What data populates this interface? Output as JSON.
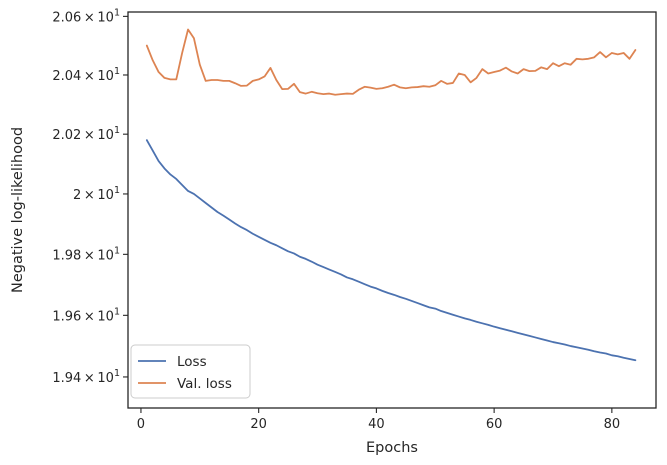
{
  "chart_data": {
    "type": "line",
    "xlabel": "Epochs",
    "ylabel": "Negative log-likelihood",
    "xlim": [
      -2.2,
      87.5
    ],
    "ylim": [
      19.3,
      20.615
    ],
    "yscale": "log",
    "grid": false,
    "legend_position": "lower-left",
    "x_ticks": [
      {
        "value": 0,
        "label": "0"
      },
      {
        "value": 20,
        "label": "20"
      },
      {
        "value": 40,
        "label": "40"
      },
      {
        "value": 60,
        "label": "60"
      },
      {
        "value": 80,
        "label": "80"
      }
    ],
    "y_ticks": [
      {
        "value": 19.4,
        "base": "1.94",
        "exp": "1"
      },
      {
        "value": 19.6,
        "base": "1.96",
        "exp": "1"
      },
      {
        "value": 19.8,
        "base": "1.98",
        "exp": "1"
      },
      {
        "value": 20.0,
        "base": "2",
        "exp": "1"
      },
      {
        "value": 20.2,
        "base": "2.02",
        "exp": "1"
      },
      {
        "value": 20.4,
        "base": "2.04",
        "exp": "1"
      },
      {
        "value": 20.6,
        "base": "2.06",
        "exp": "1"
      }
    ],
    "tick_times_sign": "×",
    "tick_base_ten": "10",
    "x": [
      1,
      2,
      3,
      4,
      5,
      6,
      7,
      8,
      9,
      10,
      11,
      12,
      13,
      14,
      15,
      16,
      17,
      18,
      19,
      20,
      21,
      22,
      23,
      24,
      25,
      26,
      27,
      28,
      29,
      30,
      31,
      32,
      33,
      34,
      35,
      36,
      37,
      38,
      39,
      40,
      41,
      42,
      43,
      44,
      45,
      46,
      47,
      48,
      49,
      50,
      51,
      52,
      53,
      54,
      55,
      56,
      57,
      58,
      59,
      60,
      61,
      62,
      63,
      64,
      65,
      66,
      67,
      68,
      69,
      70,
      71,
      72,
      73,
      74,
      75,
      76,
      77,
      78,
      79,
      80,
      81,
      82,
      83,
      84
    ],
    "series": [
      {
        "name": "Loss",
        "color": "#4c72b0",
        "values": [
          20.18,
          20.145,
          20.11,
          20.085,
          20.065,
          20.05,
          20.03,
          20.01,
          20.0,
          19.985,
          19.97,
          19.955,
          19.94,
          19.928,
          19.915,
          19.902,
          19.89,
          19.88,
          19.868,
          19.858,
          19.848,
          19.838,
          19.83,
          19.82,
          19.81,
          19.803,
          19.792,
          19.785,
          19.776,
          19.766,
          19.758,
          19.75,
          19.742,
          19.734,
          19.724,
          19.718,
          19.71,
          19.702,
          19.694,
          19.688,
          19.68,
          19.673,
          19.667,
          19.66,
          19.654,
          19.647,
          19.64,
          19.633,
          19.626,
          19.622,
          19.614,
          19.608,
          19.602,
          19.596,
          19.59,
          19.585,
          19.579,
          19.574,
          19.569,
          19.563,
          19.558,
          19.553,
          19.548,
          19.543,
          19.538,
          19.533,
          19.528,
          19.523,
          19.518,
          19.513,
          19.509,
          19.505,
          19.5,
          19.496,
          19.492,
          19.488,
          19.483,
          19.479,
          19.476,
          19.47,
          19.467,
          19.462,
          19.458,
          19.454
        ]
      },
      {
        "name": "Val. loss",
        "color": "#dd8452",
        "values": [
          20.5,
          20.45,
          20.41,
          20.39,
          20.385,
          20.385,
          20.475,
          20.555,
          20.525,
          20.435,
          20.38,
          20.383,
          20.383,
          20.38,
          20.38,
          20.372,
          20.363,
          20.364,
          20.38,
          20.385,
          20.395,
          20.424,
          20.383,
          20.352,
          20.353,
          20.37,
          20.342,
          20.337,
          20.343,
          20.338,
          20.335,
          20.337,
          20.333,
          20.335,
          20.337,
          20.336,
          20.35,
          20.36,
          20.357,
          20.353,
          20.355,
          20.36,
          20.367,
          20.358,
          20.355,
          20.358,
          20.359,
          20.362,
          20.36,
          20.365,
          20.38,
          20.37,
          20.373,
          20.405,
          20.4,
          20.375,
          20.39,
          20.42,
          20.405,
          20.41,
          20.415,
          20.425,
          20.412,
          20.405,
          20.42,
          20.413,
          20.414,
          20.426,
          20.42,
          20.44,
          20.43,
          20.44,
          20.435,
          20.455,
          20.453,
          20.455,
          20.46,
          20.478,
          20.46,
          20.475,
          20.47,
          20.475,
          20.455,
          20.485
        ]
      }
    ]
  }
}
